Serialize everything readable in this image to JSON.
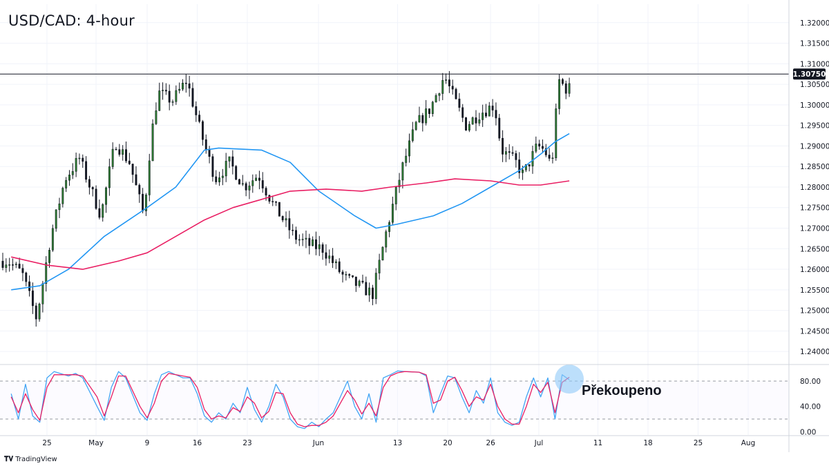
{
  "header": {
    "title": "USD/CAD: 4-hour"
  },
  "branding": {
    "logo_text": "TradingView"
  },
  "annotation": {
    "overbought_label": "Překoupeno"
  },
  "colors": {
    "bull_candle": "#2e7d32",
    "bear_candle": "#131722",
    "wick": "#131722",
    "sma_fast": "#2196f3",
    "sma_slow": "#e91e63",
    "stoch_k": "#42a5f5",
    "stoch_d": "#e91e63",
    "resistance": "#131722",
    "highlight": "#90caf9"
  },
  "chart_data": [
    {
      "type": "candlestick",
      "title": "USD/CAD: 4-hour",
      "ylim": [
        1.237,
        1.3245
      ],
      "y_ticks": [
        "1.32000",
        "1.31500",
        "1.31000",
        "1.30500",
        "1.30000",
        "1.29500",
        "1.29000",
        "1.28500",
        "1.28000",
        "1.27500",
        "1.27000",
        "1.26500",
        "1.26000",
        "1.25500",
        "1.25000",
        "1.24500",
        "1.24000"
      ],
      "x_ticks": [
        "25",
        "May",
        "9",
        "16",
        "23",
        "Jun",
        "13",
        "20",
        "26",
        "Jul",
        "11",
        "18",
        "25",
        "Aug"
      ],
      "resistance_level": 1.3075,
      "resistance_label": "1.30750",
      "price_path": [
        [
          "Apr 20",
          1.262
        ],
        [
          "Apr 22",
          1.259
        ],
        [
          "Apr 24",
          1.248
        ],
        [
          "Apr 26",
          1.268
        ],
        [
          "Apr 28",
          1.282
        ],
        [
          "Apr 30",
          1.287
        ],
        [
          "May 3",
          1.273
        ],
        [
          "May 5",
          1.291
        ],
        [
          "May 7",
          1.286
        ],
        [
          "May 9",
          1.273
        ],
        [
          "May 10",
          1.292
        ],
        [
          "May 11",
          1.303
        ],
        [
          "May 13",
          1.301
        ],
        [
          "May 15",
          1.306
        ],
        [
          "May 17",
          1.293
        ],
        [
          "May 19",
          1.282
        ],
        [
          "May 21",
          1.286
        ],
        [
          "May 23",
          1.28
        ],
        [
          "May 25",
          1.283
        ],
        [
          "May 27",
          1.276
        ],
        [
          "May 30",
          1.268
        ],
        [
          "Jun 1",
          1.266
        ],
        [
          "Jun 3",
          1.265
        ],
        [
          "Jun 6",
          1.258
        ],
        [
          "Jun 8",
          1.256
        ],
        [
          "Jun 10",
          1.254
        ],
        [
          "Jun 12",
          1.27
        ],
        [
          "Jun 14",
          1.284
        ],
        [
          "Jun 16",
          1.295
        ],
        [
          "Jun 18",
          1.299
        ],
        [
          "Jun 20",
          1.307
        ],
        [
          "Jun 21",
          1.303
        ],
        [
          "Jun 23",
          1.295
        ],
        [
          "Jun 25",
          1.298
        ],
        [
          "Jun 27",
          1.3
        ],
        [
          "Jun 28",
          1.289
        ],
        [
          "Jun 30",
          1.286
        ],
        [
          "Jul 1",
          1.283
        ],
        [
          "Jul 3",
          1.29
        ],
        [
          "Jul 4",
          1.289
        ],
        [
          "Jul 5",
          1.285
        ],
        [
          "Jul 6",
          1.306
        ],
        [
          "Jul 7",
          1.304
        ]
      ],
      "series": [
        {
          "name": "",
          "type": "moving-average",
          "color_key": "sma_fast",
          "values": [
            [
              "Apr 20",
              1.255
            ],
            [
              "Apr 24",
              1.256
            ],
            [
              "Apr 28",
              1.26
            ],
            [
              "May 3",
              1.268
            ],
            [
              "May 9",
              1.275
            ],
            [
              "May 13",
              1.28
            ],
            [
              "May 17",
              1.289
            ],
            [
              "May 19",
              1.2895
            ],
            [
              "May 25",
              1.289
            ],
            [
              "May 29",
              1.286
            ],
            [
              "Jun 2",
              1.279
            ],
            [
              "Jun 7",
              1.273
            ],
            [
              "Jun 10",
              1.27
            ],
            [
              "Jun 13",
              1.271
            ],
            [
              "Jun 18",
              1.273
            ],
            [
              "Jun 22",
              1.276
            ],
            [
              "Jun 26",
              1.28
            ],
            [
              "Jun 30",
              1.284
            ],
            [
              "Jul 3",
              1.288
            ],
            [
              "Jul 5",
              1.291
            ],
            [
              "Jul 7",
              1.293
            ]
          ]
        },
        {
          "name": "",
          "type": "moving-average",
          "color_key": "sma_slow",
          "values": [
            [
              "Apr 20",
              1.263
            ],
            [
              "Apr 25",
              1.261
            ],
            [
              "Apr 30",
              1.26
            ],
            [
              "May 5",
              1.262
            ],
            [
              "May 9",
              1.264
            ],
            [
              "May 13",
              1.268
            ],
            [
              "May 17",
              1.272
            ],
            [
              "May 21",
              1.275
            ],
            [
              "May 25",
              1.277
            ],
            [
              "May 29",
              1.279
            ],
            [
              "Jun 3",
              1.2795
            ],
            [
              "Jun 8",
              1.279
            ],
            [
              "Jun 12",
              1.28
            ],
            [
              "Jun 17",
              1.281
            ],
            [
              "Jun 21",
              1.282
            ],
            [
              "Jun 26",
              1.2815
            ],
            [
              "Jun 30",
              1.2805
            ],
            [
              "Jul 3",
              1.2805
            ],
            [
              "Jul 5",
              1.281
            ],
            [
              "Jul 7",
              1.2815
            ]
          ]
        }
      ]
    },
    {
      "type": "line",
      "title": "",
      "ylim": [
        -5,
        105
      ],
      "y_ticks": [
        "80.00",
        "40.00",
        "0.00"
      ],
      "overbought": 80,
      "oversold": 20,
      "series": [
        {
          "name": "",
          "color_key": "stoch_k",
          "values": [
            [
              "Apr 20",
              60
            ],
            [
              "Apr 21",
              20
            ],
            [
              "Apr 22",
              75
            ],
            [
              "Apr 23",
              25
            ],
            [
              "Apr 24",
              15
            ],
            [
              "Apr 25",
              85
            ],
            [
              "Apr 26",
              95
            ],
            [
              "Apr 28",
              88
            ],
            [
              "Apr 29",
              92
            ],
            [
              "Apr 30",
              85
            ],
            [
              "May 2",
              40
            ],
            [
              "May 3",
              18
            ],
            [
              "May 4",
              70
            ],
            [
              "May 5",
              95
            ],
            [
              "May 6",
              85
            ],
            [
              "May 8",
              30
            ],
            [
              "May 9",
              18
            ],
            [
              "May 10",
              60
            ],
            [
              "May 11",
              90
            ],
            [
              "May 12",
              95
            ],
            [
              "May 14",
              85
            ],
            [
              "May 15",
              85
            ],
            [
              "May 16",
              60
            ],
            [
              "May 17",
              25
            ],
            [
              "May 18",
              15
            ],
            [
              "May 19",
              30
            ],
            [
              "May 20",
              20
            ],
            [
              "May 21",
              45
            ],
            [
              "May 22",
              30
            ],
            [
              "May 23",
              70
            ],
            [
              "May 24",
              35
            ],
            [
              "May 25",
              15
            ],
            [
              "May 26",
              40
            ],
            [
              "May 27",
              75
            ],
            [
              "May 28",
              55
            ],
            [
              "May 29",
              20
            ],
            [
              "May 30",
              8
            ],
            [
              "May 31",
              5
            ],
            [
              "Jun 1",
              15
            ],
            [
              "Jun 2",
              8
            ],
            [
              "Jun 3",
              20
            ],
            [
              "Jun 4",
              30
            ],
            [
              "Jun 6",
              80
            ],
            [
              "Jun 7",
              40
            ],
            [
              "Jun 8",
              20
            ],
            [
              "Jun 9",
              60
            ],
            [
              "Jun 10",
              15
            ],
            [
              "Jun 11",
              85
            ],
            [
              "Jun 12",
              90
            ],
            [
              "Jun 13",
              96
            ],
            [
              "Jun 14",
              95
            ],
            [
              "Jun 16",
              94
            ],
            [
              "Jun 17",
              88
            ],
            [
              "Jun 18",
              30
            ],
            [
              "Jun 19",
              60
            ],
            [
              "Jun 20",
              88
            ],
            [
              "Jun 21",
              85
            ],
            [
              "Jun 22",
              55
            ],
            [
              "Jun 23",
              30
            ],
            [
              "Jun 24",
              65
            ],
            [
              "Jun 25",
              45
            ],
            [
              "Jun 26",
              85
            ],
            [
              "Jun 27",
              30
            ],
            [
              "Jun 28",
              15
            ],
            [
              "Jun 29",
              10
            ],
            [
              "Jun 30",
              15
            ],
            [
              "Jul 1",
              55
            ],
            [
              "Jul 2",
              85
            ],
            [
              "Jul 3",
              55
            ],
            [
              "Jul 4",
              85
            ],
            [
              "Jul 5",
              20
            ],
            [
              "Jul 6",
              90
            ],
            [
              "Jul 7",
              82
            ]
          ]
        },
        {
          "name": "",
          "color_key": "stoch_d",
          "values": [
            [
              "Apr 20",
              55
            ],
            [
              "Apr 21",
              30
            ],
            [
              "Apr 22",
              60
            ],
            [
              "Apr 23",
              35
            ],
            [
              "Apr 24",
              18
            ],
            [
              "Apr 25",
              70
            ],
            [
              "Apr 26",
              90
            ],
            [
              "Apr 28",
              90
            ],
            [
              "Apr 29",
              90
            ],
            [
              "Apr 30",
              88
            ],
            [
              "May 2",
              55
            ],
            [
              "May 3",
              25
            ],
            [
              "May 4",
              55
            ],
            [
              "May 5",
              88
            ],
            [
              "May 6",
              88
            ],
            [
              "May 8",
              40
            ],
            [
              "May 9",
              22
            ],
            [
              "May 10",
              45
            ],
            [
              "May 11",
              80
            ],
            [
              "May 12",
              92
            ],
            [
              "May 14",
              88
            ],
            [
              "May 15",
              86
            ],
            [
              "May 16",
              70
            ],
            [
              "May 17",
              35
            ],
            [
              "May 18",
              20
            ],
            [
              "May 19",
              25
            ],
            [
              "May 20",
              22
            ],
            [
              "May 21",
              38
            ],
            [
              "May 22",
              32
            ],
            [
              "May 23",
              55
            ],
            [
              "May 24",
              45
            ],
            [
              "May 25",
              22
            ],
            [
              "May 26",
              32
            ],
            [
              "May 27",
              62
            ],
            [
              "May 28",
              60
            ],
            [
              "May 29",
              30
            ],
            [
              "May 30",
              12
            ],
            [
              "May 31",
              8
            ],
            [
              "Jun 1",
              10
            ],
            [
              "Jun 2",
              10
            ],
            [
              "Jun 3",
              15
            ],
            [
              "Jun 4",
              25
            ],
            [
              "Jun 6",
              65
            ],
            [
              "Jun 7",
              50
            ],
            [
              "Jun 8",
              28
            ],
            [
              "Jun 9",
              45
            ],
            [
              "Jun 10",
              25
            ],
            [
              "Jun 11",
              70
            ],
            [
              "Jun 12",
              88
            ],
            [
              "Jun 13",
              93
            ],
            [
              "Jun 14",
              95
            ],
            [
              "Jun 16",
              94
            ],
            [
              "Jun 17",
              90
            ],
            [
              "Jun 18",
              45
            ],
            [
              "Jun 19",
              50
            ],
            [
              "Jun 20",
              80
            ],
            [
              "Jun 21",
              86
            ],
            [
              "Jun 22",
              65
            ],
            [
              "Jun 23",
              40
            ],
            [
              "Jun 24",
              55
            ],
            [
              "Jun 25",
              50
            ],
            [
              "Jun 26",
              75
            ],
            [
              "Jun 27",
              40
            ],
            [
              "Jun 28",
              20
            ],
            [
              "Jun 29",
              12
            ],
            [
              "Jun 30",
              12
            ],
            [
              "Jul 1",
              40
            ],
            [
              "Jul 2",
              75
            ],
            [
              "Jul 3",
              62
            ],
            [
              "Jul 4",
              78
            ],
            [
              "Jul 5",
              30
            ],
            [
              "Jul 6",
              78
            ],
            [
              "Jul 7",
              86
            ]
          ]
        }
      ]
    }
  ]
}
